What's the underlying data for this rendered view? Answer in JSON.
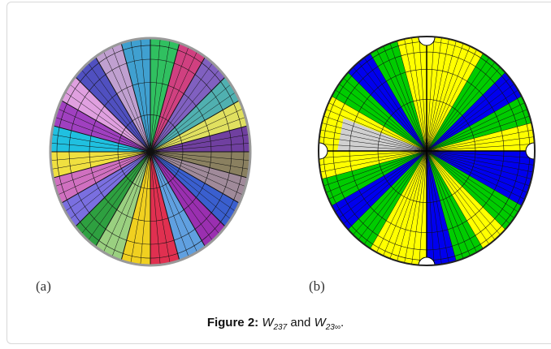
{
  "panels": [
    {
      "label": "(a)"
    },
    {
      "label": "(b)"
    }
  ],
  "caption": {
    "prefix": "Figure 2:",
    "w1": "W",
    "s1": "237",
    "mid": "and",
    "w2": "W",
    "s2": "23∞",
    "end": "."
  }
}
